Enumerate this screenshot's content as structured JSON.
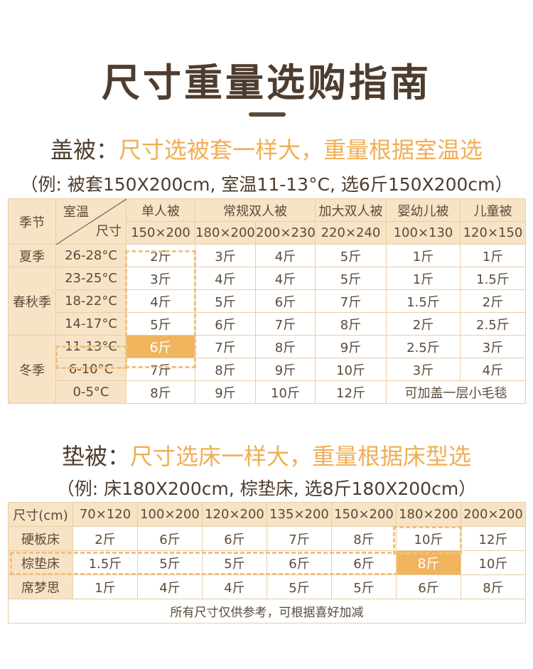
{
  "title": "尺寸重量选购指南",
  "quilt": {
    "heading_prefix": "盖被：",
    "heading_highlight": "尺寸选被套一样大，重量根据室温选",
    "example": "（例: 被套150X200cm, 室温11-13°C, 选6斤150X200cm）",
    "corner_top": "室温",
    "corner_bottom": "尺寸",
    "season_header": "季节",
    "types": [
      "单人被",
      "常规双人被",
      "加大双人被",
      "婴幼儿被",
      "儿童被"
    ],
    "sizes": [
      "150×200",
      "180×200",
      "200×230",
      "220×240",
      "100×130",
      "120×150"
    ],
    "seasons": [
      "夏季",
      "春秋季",
      "冬季"
    ],
    "rows": [
      {
        "temp": "26-28°C",
        "vals": [
          "2斤",
          "3斤",
          "4斤",
          "5斤",
          "1斤",
          "1斤"
        ]
      },
      {
        "temp": "23-25°C",
        "vals": [
          "3斤",
          "4斤",
          "4斤",
          "5斤",
          "1斤",
          "1.5斤"
        ]
      },
      {
        "temp": "18-22°C",
        "vals": [
          "4斤",
          "5斤",
          "6斤",
          "7斤",
          "1.5斤",
          "2斤"
        ]
      },
      {
        "temp": "14-17°C",
        "vals": [
          "5斤",
          "6斤",
          "7斤",
          "8斤",
          "2斤",
          "2.5斤"
        ]
      },
      {
        "temp": "11-13°C",
        "vals": [
          "6斤",
          "7斤",
          "8斤",
          "9斤",
          "2.5斤",
          "3斤"
        ]
      },
      {
        "temp": "6-10°C",
        "vals": [
          "7斤",
          "8斤",
          "9斤",
          "10斤",
          "3斤",
          "4斤"
        ]
      },
      {
        "temp": "0-5°C",
        "vals": [
          "8斤",
          "9斤",
          "10斤",
          "12斤"
        ],
        "note": "可加盖一层小毛毯"
      }
    ]
  },
  "mattress": {
    "heading_prefix": "垫被：",
    "heading_highlight": "尺寸选床一样大，重量根据床型选",
    "example": "（例: 床180X200cm, 棕垫床, 选8斤180X200cm）",
    "size_header": "尺寸(cm)",
    "sizes": [
      "70×120",
      "100×200",
      "120×200",
      "135×200",
      "150×200",
      "180×200",
      "200×200"
    ],
    "rows": [
      {
        "bed": "硬板床",
        "vals": [
          "2斤",
          "6斤",
          "6斤",
          "7斤",
          "8斤",
          "10斤",
          "12斤"
        ]
      },
      {
        "bed": "棕垫床",
        "vals": [
          "1.5斤",
          "5斤",
          "5斤",
          "6斤",
          "6斤",
          "8斤",
          "10斤"
        ]
      },
      {
        "bed": "席梦思",
        "vals": [
          "1斤",
          "4斤",
          "4斤",
          "5斤",
          "5斤",
          "6斤",
          "8斤"
        ]
      }
    ],
    "footnote": "所有尺寸仅供参考，可根据喜好加减"
  },
  "colors": {
    "highlight": "#f0b45d",
    "header_bg": "#f7e4c6",
    "border": "#e8cda4",
    "text": "#4e3d2f"
  }
}
